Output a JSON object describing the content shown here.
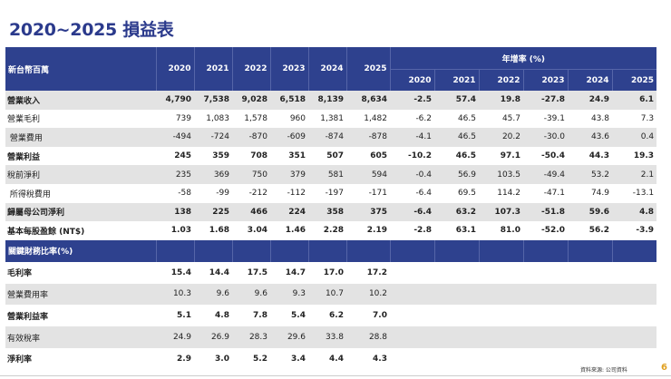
{
  "title": "2020~2025 損益表",
  "header": {
    "unit_label": "新台幣百萬",
    "years": [
      "2020",
      "2021",
      "2022",
      "2023",
      "2024",
      "2025"
    ],
    "growth_label": "年增率 (%)",
    "growth_years": [
      "2020",
      "2021",
      "2022",
      "2023",
      "2024",
      "2025"
    ]
  },
  "rows": [
    {
      "label": "營業收入",
      "values": [
        "4,790",
        "7,538",
        "9,028",
        "6,518",
        "8,139",
        "8,634"
      ],
      "growth": [
        "-2.5",
        "57.4",
        "19.8",
        "-27.8",
        "24.9",
        "6.1"
      ]
    },
    {
      "label": "營業毛利",
      "values": [
        "739",
        "1,083",
        "1,578",
        "960",
        "1,381",
        "1,482"
      ],
      "growth": [
        "-6.2",
        "46.5",
        "45.7",
        "-39.1",
        "43.8",
        "7.3"
      ]
    },
    {
      "label": " 營業費用",
      "values": [
        "-494",
        "-724",
        "-870",
        "-609",
        "-874",
        "-878"
      ],
      "growth": [
        "-4.1",
        "46.5",
        "20.2",
        "-30.0",
        "43.6",
        "0.4"
      ]
    },
    {
      "label": "營業利益",
      "values": [
        "245",
        "359",
        "708",
        "351",
        "507",
        "605"
      ],
      "growth": [
        "-10.2",
        "46.5",
        "97.1",
        "-50.4",
        "44.3",
        "19.3"
      ]
    },
    {
      "label": "稅前淨利",
      "values": [
        "235",
        "369",
        "750",
        "379",
        "581",
        "594"
      ],
      "growth": [
        "-0.4",
        "56.9",
        "103.5",
        "-49.4",
        "53.2",
        "2.1"
      ]
    },
    {
      "label": " 所得稅費用",
      "values": [
        "-58",
        "-99",
        "-212",
        "-112",
        "-197",
        "-171"
      ],
      "growth": [
        "-6.4",
        "69.5",
        "114.2",
        "-47.1",
        "74.9",
        "-13.1"
      ]
    },
    {
      "label": "歸屬母公司淨利",
      "values": [
        "138",
        "225",
        "466",
        "224",
        "358",
        "375"
      ],
      "growth": [
        "-6.4",
        "63.2",
        "107.3",
        "-51.8",
        "59.6",
        "4.8"
      ]
    },
    {
      "label": "基本每股盈餘 (NT$)",
      "values": [
        "1.03",
        "1.68",
        "3.04",
        "1.46",
        "2.28",
        "2.19"
      ],
      "growth": [
        "-2.8",
        "63.1",
        "81.0",
        "-52.0",
        "56.2",
        "-3.9"
      ]
    }
  ],
  "ratios_header": "關鍵財務比率(%)",
  "ratios": [
    {
      "label": "毛利率",
      "values": [
        "15.4",
        "14.4",
        "17.5",
        "14.7",
        "17.0",
        "17.2"
      ]
    },
    {
      "label": "營業費用率",
      "values": [
        "10.3",
        "9.6",
        "9.6",
        "9.3",
        "10.7",
        "10.2"
      ]
    },
    {
      "label": "營業利益率",
      "values": [
        "5.1",
        "4.8",
        "7.8",
        "5.4",
        "6.2",
        "7.0"
      ]
    },
    {
      "label": "有效稅率",
      "values": [
        "24.9",
        "26.9",
        "28.3",
        "29.6",
        "33.8",
        "28.8"
      ]
    },
    {
      "label": "淨利率",
      "values": [
        "2.9",
        "3.0",
        "5.2",
        "3.4",
        "4.4",
        "4.3"
      ]
    }
  ],
  "source": "資料來源: 公司資料",
  "page_number": "6",
  "colors": {
    "header_bg": "#2e418e",
    "title": "#2b3a8c",
    "stripe": "#e3e3e3",
    "page_number": "#e0a020"
  }
}
